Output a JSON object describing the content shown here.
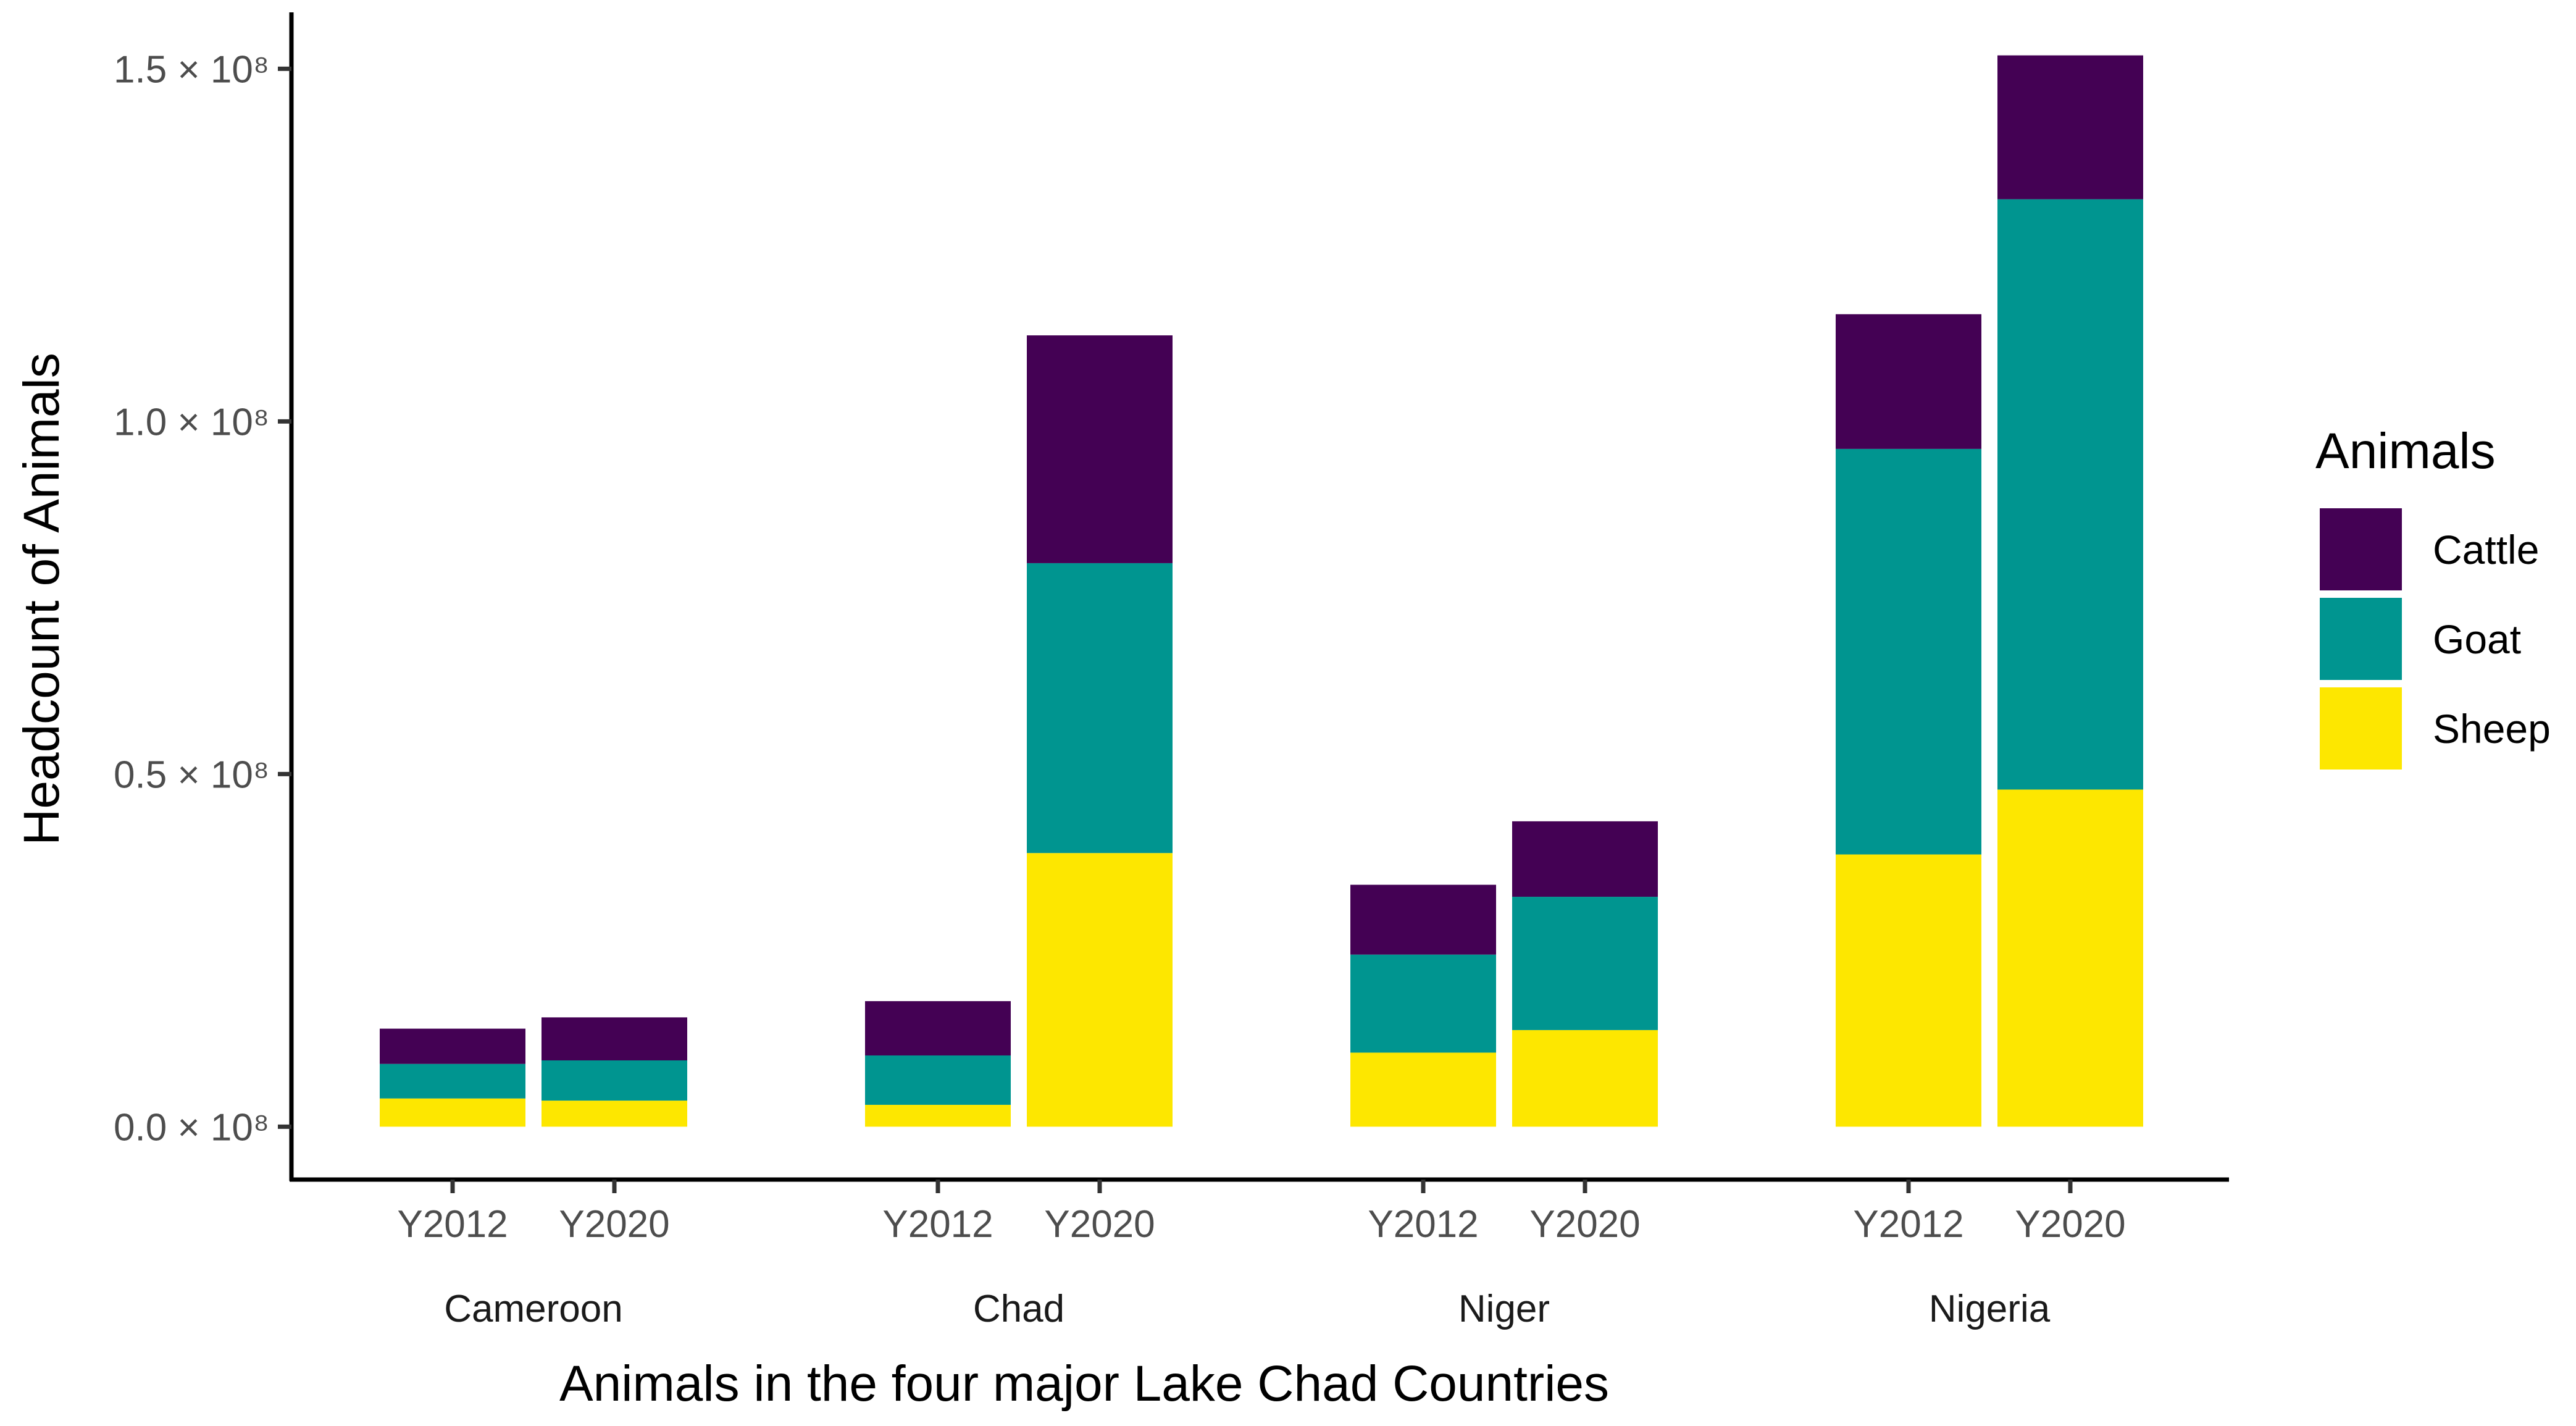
{
  "chart_data": {
    "type": "bar",
    "stacked": true,
    "xlabel": "Animals in the four major Lake Chad Countries",
    "ylabel": "Headcount of Animals",
    "ylim": [
      -7500000,
      158000000
    ],
    "yticks": [
      {
        "value": 0,
        "label": "0.0 × 10⁸"
      },
      {
        "value": 50000000,
        "label": "0.5 × 10⁸"
      },
      {
        "value": 100000000,
        "label": "1.0 × 10⁸"
      },
      {
        "value": 150000000,
        "label": "1.5 × 10⁸"
      }
    ],
    "legend": {
      "title": "Animals",
      "position": "right"
    },
    "grid": false,
    "colors": {
      "Cattle": "#440154",
      "Goat": "#009590",
      "Sheep": "#fde700"
    },
    "groups": [
      {
        "country": "Cameroon",
        "bars": [
          {
            "year": "Y2012",
            "Sheep": 4000000,
            "Goat": 4900000,
            "Cattle": 5000000
          },
          {
            "year": "Y2020",
            "Sheep": 3700000,
            "Goat": 5700000,
            "Cattle": 6100000
          }
        ]
      },
      {
        "country": "Chad",
        "bars": [
          {
            "year": "Y2012",
            "Sheep": 3100000,
            "Goat": 7000000,
            "Cattle": 7700000
          },
          {
            "year": "Y2020",
            "Sheep": 38800000,
            "Goat": 41100000,
            "Cattle": 32300000
          }
        ]
      },
      {
        "country": "Niger",
        "bars": [
          {
            "year": "Y2012",
            "Sheep": 10500000,
            "Goat": 13900000,
            "Cattle": 9900000
          },
          {
            "year": "Y2020",
            "Sheep": 13700000,
            "Goat": 18900000,
            "Cattle": 10700000
          }
        ]
      },
      {
        "country": "Nigeria",
        "bars": [
          {
            "year": "Y2012",
            "Sheep": 38600000,
            "Goat": 57500000,
            "Cattle": 19100000
          },
          {
            "year": "Y2020",
            "Sheep": 47800000,
            "Goat": 83700000,
            "Cattle": 20400000
          }
        ]
      }
    ],
    "stack_order": [
      "Sheep",
      "Goat",
      "Cattle"
    ],
    "legend_order": [
      "Cattle",
      "Goat",
      "Sheep"
    ]
  }
}
